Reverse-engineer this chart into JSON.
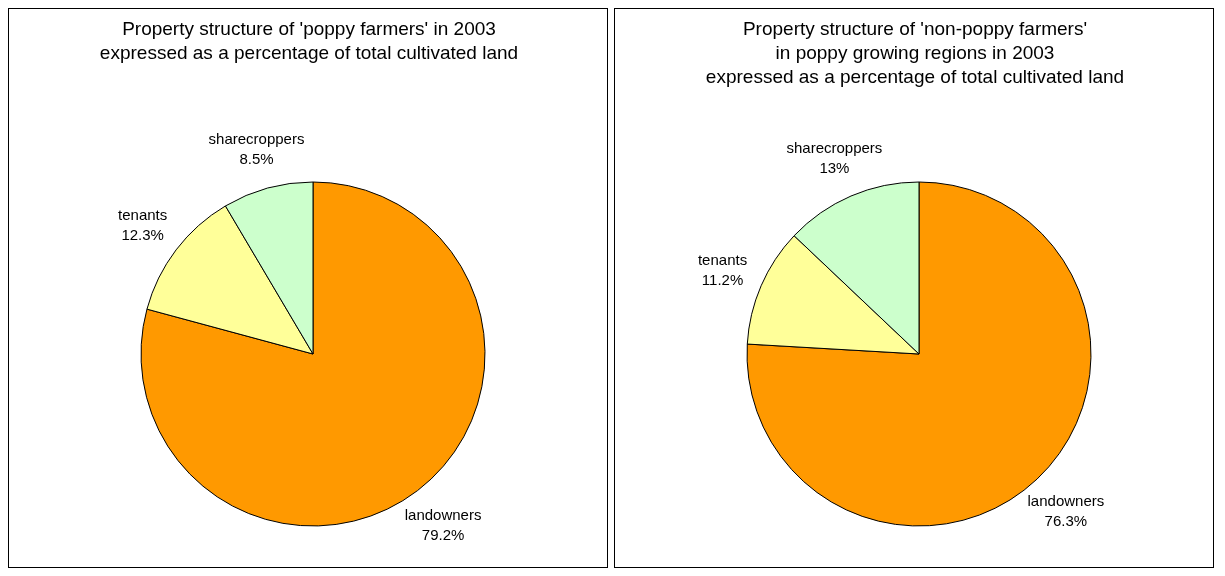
{
  "chart_data": [
    {
      "type": "pie",
      "title": "Property structure of 'poppy farmers' in 2003\nexpressed as a percentage of total cultivated land",
      "categories": [
        "landowners",
        "tenants",
        "sharecroppers"
      ],
      "values": [
        79.2,
        12.3,
        8.5
      ],
      "value_labels": [
        "79.2%",
        "12.3%",
        "8.5%"
      ],
      "colors": [
        "#ff9900",
        "#ffff99",
        "#ccffcc"
      ]
    },
    {
      "type": "pie",
      "title": "Property structure of 'non-poppy farmers'\nin poppy growing regions in 2003\nexpressed as a percentage of total cultivated land",
      "categories": [
        "landowners",
        "tenants",
        "sharecroppers"
      ],
      "values": [
        76.3,
        11.2,
        13
      ],
      "value_labels": [
        "76.3%",
        "11.2%",
        "13%"
      ],
      "colors": [
        "#ff9900",
        "#ffff99",
        "#ccffcc"
      ]
    }
  ]
}
